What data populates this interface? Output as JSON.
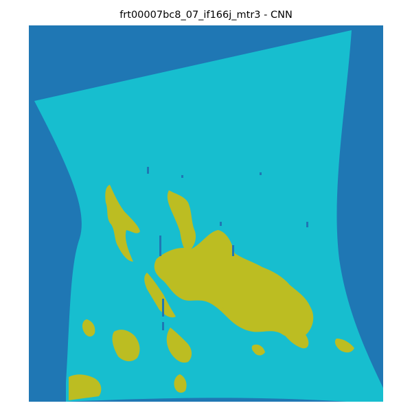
{
  "title": "frt00007bc8_07_if166j_mtr3 - CNN",
  "colors": {
    "background_class": "#1f77b4",
    "dominant_class": "#17becf",
    "secondary_class": "#bcbd22",
    "minor_class": "#1f77b4"
  },
  "image": {
    "description_kind": "classification-map",
    "axes": "off"
  }
}
